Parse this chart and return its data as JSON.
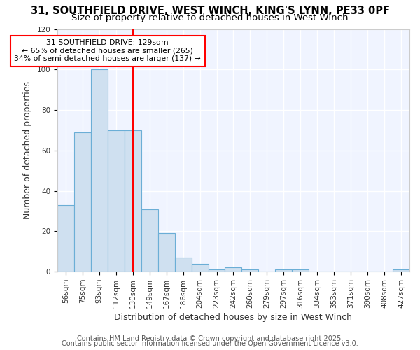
{
  "title_line1": "31, SOUTHFIELD DRIVE, WEST WINCH, KING'S LYNN, PE33 0PF",
  "title_line2": "Size of property relative to detached houses in West Winch",
  "xlabel": "Distribution of detached houses by size in West Winch",
  "ylabel": "Number of detached properties",
  "bin_labels": [
    "56sqm",
    "75sqm",
    "93sqm",
    "112sqm",
    "130sqm",
    "149sqm",
    "167sqm",
    "186sqm",
    "204sqm",
    "223sqm",
    "242sqm",
    "260sqm",
    "279sqm",
    "297sqm",
    "316sqm",
    "334sqm",
    "353sqm",
    "371sqm",
    "390sqm",
    "408sqm",
    "427sqm"
  ],
  "bar_heights": [
    33,
    69,
    100,
    70,
    70,
    31,
    19,
    7,
    4,
    1,
    2,
    1,
    0,
    1,
    1,
    0,
    0,
    0,
    0,
    0,
    1
  ],
  "bar_color": "#cfe0f0",
  "bar_edge_color": "#6baed6",
  "red_line_index": 4,
  "annotation_text": "31 SOUTHFIELD DRIVE: 129sqm\n← 65% of detached houses are smaller (265)\n34% of semi-detached houses are larger (137) →",
  "annotation_box_color": "white",
  "annotation_box_edge": "red",
  "footer_line1": "Contains HM Land Registry data © Crown copyright and database right 2025.",
  "footer_line2": "Contains public sector information licensed under the Open Government Licence v3.0.",
  "plot_background": "#f0f4ff",
  "fig_background": "#ffffff",
  "ylim": [
    0,
    120
  ],
  "yticks": [
    0,
    20,
    40,
    60,
    80,
    100,
    120
  ],
  "title_fontsize": 10.5,
  "subtitle_fontsize": 9.5,
  "axis_label_fontsize": 9,
  "tick_fontsize": 7.5,
  "footer_fontsize": 7
}
